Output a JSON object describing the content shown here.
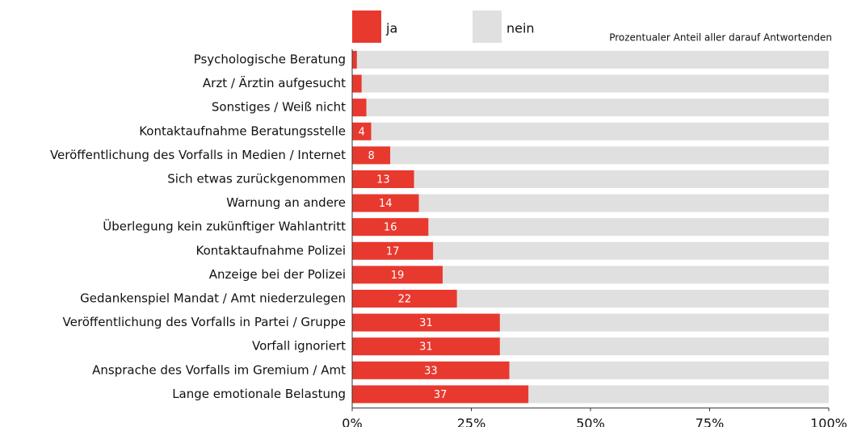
{
  "chart_data": {
    "type": "stacked_bar_horizontal",
    "subtitle": "Prozentualer Anteil aller darauf Antwortenden",
    "categories": [
      "Psychologische Beratung",
      "Arzt / Ärztin aufgesucht",
      "Sonstiges / Weiß nicht",
      "Kontaktaufnahme Beratungsstelle",
      "Veröffentlichung des Vorfalls in Medien / Internet",
      "Sich etwas zurückgenommen",
      "Warnung an andere",
      "Überlegung kein zukünftiger Wahlantritt",
      "Kontaktaufnahme Polizei",
      "Anzeige bei der Polizei",
      "Gedankenspiel Mandat / Amt niederzulegen",
      "Veröffentlichung des Vorfalls in Partei / Gruppe",
      "Vorfall ignoriert",
      "Ansprache des Vorfalls im Gremium / Amt",
      "Lange emotionale Belastung"
    ],
    "series": [
      {
        "name": "ja",
        "color": "#e8392f",
        "values": [
          1,
          2,
          3,
          4,
          8,
          13,
          14,
          16,
          17,
          19,
          22,
          31,
          31,
          33,
          37
        ]
      },
      {
        "name": "nein",
        "color": "#e0e0e0",
        "values": [
          99,
          98,
          97,
          96,
          92,
          87,
          86,
          84,
          83,
          81,
          78,
          69,
          69,
          67,
          63
        ]
      }
    ],
    "xlim": [
      0,
      100
    ],
    "xticks": [
      {
        "value": 0,
        "label": "0%"
      },
      {
        "value": 25,
        "label": "25%"
      },
      {
        "value": 50,
        "label": "50%"
      },
      {
        "value": 75,
        "label": "75%"
      },
      {
        "value": 100,
        "label": "100%"
      }
    ]
  }
}
